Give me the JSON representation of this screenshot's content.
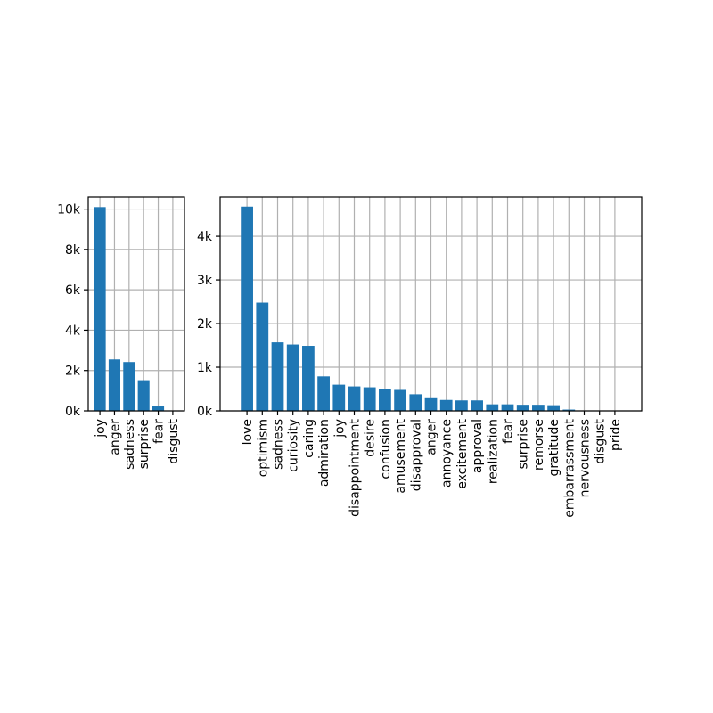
{
  "chart_data": [
    {
      "type": "bar",
      "categories": [
        "joy",
        "anger",
        "sadness",
        "surprise",
        "fear",
        "disgust"
      ],
      "values": [
        10100,
        2550,
        2420,
        1520,
        220,
        20
      ],
      "yticks": [
        0,
        2000,
        4000,
        6000,
        8000,
        10000
      ],
      "ytick_labels": [
        "0k",
        "2k",
        "4k",
        "6k",
        "8k",
        "10k"
      ],
      "ylim": [
        0,
        10600
      ],
      "grid": true,
      "color": "#1f77b4"
    },
    {
      "type": "bar",
      "categories": [
        "love",
        "optimism",
        "sadness",
        "curiosity",
        "caring",
        "admiration",
        "joy",
        "disappointment",
        "desire",
        "confusion",
        "amusement",
        "disapproval",
        "anger",
        "annoyance",
        "excitement",
        "approval",
        "realization",
        "fear",
        "surprise",
        "remorse",
        "gratitude",
        "embarrassment",
        "nervousness",
        "disgust",
        "pride"
      ],
      "values": [
        4680,
        2480,
        1570,
        1520,
        1490,
        790,
        600,
        560,
        540,
        490,
        480,
        380,
        290,
        250,
        240,
        240,
        150,
        150,
        140,
        140,
        130,
        30,
        10,
        10,
        5
      ],
      "yticks": [
        0,
        1000,
        2000,
        3000,
        4000
      ],
      "ytick_labels": [
        "0k",
        "1k",
        "2k",
        "3k",
        "4k"
      ],
      "ylim": [
        0,
        4900
      ],
      "grid": true,
      "color": "#1f77b4"
    }
  ]
}
